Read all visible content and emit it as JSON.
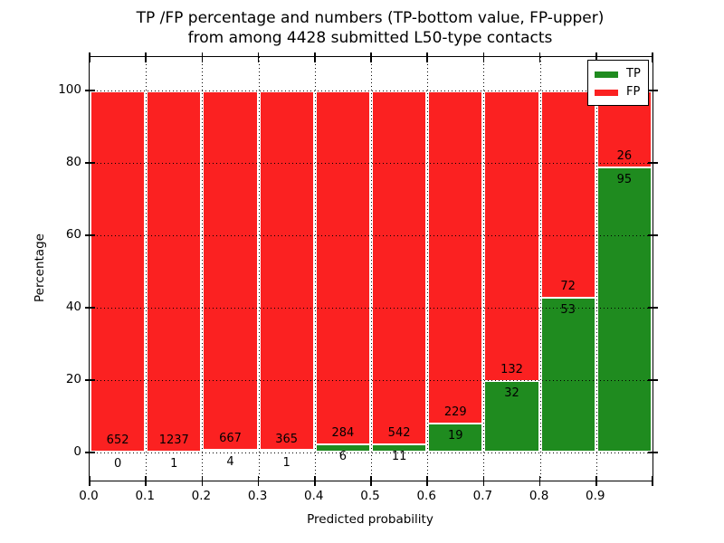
{
  "title": {
    "line1": "TP /FP percentage and numbers (TP-bottom value, FP-upper)",
    "line2": "from among 4428 submitted L50-type contacts"
  },
  "chart_data": {
    "type": "bar",
    "stacked": true,
    "normalized": "percent",
    "title": "TP /FP percentage and numbers (TP-bottom value, FP-upper) from among 4428 submitted L50-type contacts",
    "xlabel": "Predicted probability",
    "ylabel": "Percentage",
    "bin_edges": [
      0.0,
      0.1,
      0.2,
      0.3,
      0.4,
      0.5,
      0.6,
      0.7,
      0.8,
      0.9,
      1.0
    ],
    "x_tick_labels": [
      "0.0",
      "0.1",
      "0.2",
      "0.3",
      "0.4",
      "0.5",
      "0.6",
      "0.7",
      "0.8",
      "0.9"
    ],
    "y_ticks": [
      0,
      20,
      40,
      60,
      80,
      100
    ],
    "xlim": [
      0.0,
      1.0
    ],
    "ylim": [
      -8,
      109
    ],
    "grid": "dotted",
    "legend_position": "upper right",
    "series": [
      {
        "name": "TP",
        "color": "#1f8b1f",
        "values": [
          0,
          1,
          4,
          1,
          6,
          11,
          19,
          32,
          53,
          95
        ]
      },
      {
        "name": "FP",
        "color": "#fb2121",
        "values": [
          652,
          1237,
          667,
          365,
          284,
          542,
          229,
          132,
          72,
          26
        ]
      }
    ],
    "tp_percent": [
      0.0,
      0.1,
      0.6,
      0.3,
      2.1,
      2.0,
      7.7,
      19.5,
      42.4,
      78.5
    ],
    "colors": {
      "tp": "#1f8b1f",
      "fp": "#fb2121",
      "grid": "#000000",
      "frame": "#000000",
      "background": "#ffffff"
    }
  }
}
